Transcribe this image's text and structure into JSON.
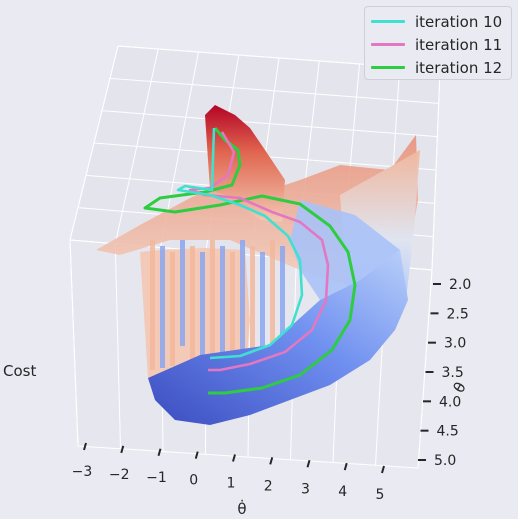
{
  "chart_data": {
    "type": "surface",
    "axes": {
      "x": {
        "label": "θ̇",
        "ticks": [
          "−3",
          "−2",
          "−1",
          "0",
          "1",
          "2",
          "3",
          "4",
          "5"
        ]
      },
      "y": {
        "label": "θ",
        "ticks": [
          "2.0",
          "2.5",
          "3.0",
          "3.5",
          "4.0",
          "4.5",
          "5.0"
        ]
      },
      "z": {
        "label": "Cost"
      }
    },
    "colormap": "coolwarm",
    "series": [
      {
        "name": "iteration 10",
        "color": "#40e0d0"
      },
      {
        "name": "iteration 11",
        "color": "#e377c2"
      },
      {
        "name": "iteration 12",
        "color": "#2ecc40"
      }
    ],
    "legend_position": "top-right"
  }
}
